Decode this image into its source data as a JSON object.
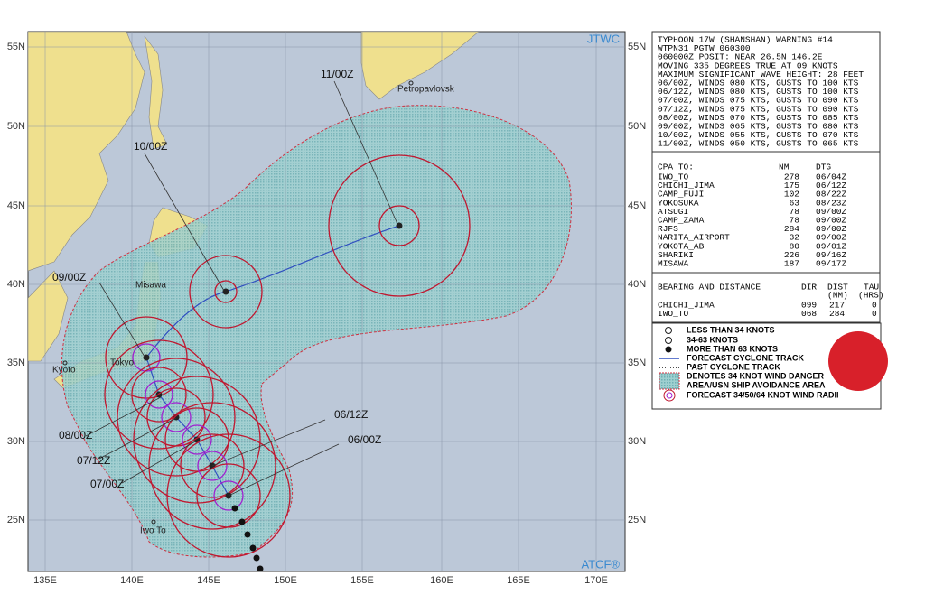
{
  "map": {
    "source": "JTWC",
    "trademark": "ATCF®",
    "lat_labels": [
      "55N",
      "50N",
      "45N",
      "40N",
      "35N",
      "30N",
      "25N"
    ],
    "lon_labels": [
      "135E",
      "140E",
      "145E",
      "150E",
      "155E",
      "160E",
      "165E",
      "170E"
    ],
    "places": [
      "Petropavlovsk",
      "Misawa",
      "Tokyo",
      "Kyoto",
      "Iwo To"
    ],
    "time_labels": [
      "11/00Z",
      "10/00Z",
      "09/00Z",
      "08/00Z",
      "07/12Z",
      "07/00Z",
      "06/12Z",
      "06/00Z"
    ]
  },
  "warning": {
    "lines": [
      "TYPHOON 17W (SHANSHAN) WARNING #14",
      "WTPN31 PGTW 060300",
      "060000Z POSIT: NEAR 26.5N 146.2E",
      "MOVING 335 DEGREES TRUE AT 09 KNOTS",
      "MAXIMUM SIGNIFICANT WAVE HEIGHT: 28 FEET",
      "06/00Z, WINDS 080 KTS, GUSTS TO 100 KTS",
      "06/12Z, WINDS 080 KTS, GUSTS TO 100 KTS",
      "07/00Z, WINDS 075 KTS, GUSTS TO 090 KTS",
      "07/12Z, WINDS 075 KTS, GUSTS TO 090 KTS",
      "08/00Z, WINDS 070 KTS, GUSTS TO 085 KTS",
      "09/00Z, WINDS 065 KTS, GUSTS TO 080 KTS",
      "10/00Z, WINDS 055 KTS, GUSTS TO 070 KTS",
      "11/00Z, WINDS 050 KTS, GUSTS TO 065 KTS"
    ]
  },
  "cpa": {
    "header": [
      "CPA TO:",
      "NM",
      "DTG"
    ],
    "rows": [
      [
        "IWO_TO",
        "278",
        "06/04Z"
      ],
      [
        "CHICHI_JIMA",
        "175",
        "06/12Z"
      ],
      [
        "CAMP_FUJI",
        "102",
        "08/22Z"
      ],
      [
        "YOKOSUKA",
        "63",
        "08/23Z"
      ],
      [
        "ATSUGI",
        "78",
        "09/00Z"
      ],
      [
        "CAMP_ZAMA",
        "78",
        "09/00Z"
      ],
      [
        "RJFS",
        "284",
        "09/00Z"
      ],
      [
        "NARITA_AIRPORT",
        "32",
        "09/00Z"
      ],
      [
        "YOKOTA_AB",
        "80",
        "09/01Z"
      ],
      [
        "SHARIKI",
        "226",
        "09/16Z"
      ],
      [
        "MISAWA",
        "187",
        "09/17Z"
      ]
    ]
  },
  "bearing": {
    "header": [
      "BEARING AND DISTANCE",
      "DIR",
      "DIST",
      "TAU"
    ],
    "subheader": [
      "(NM)",
      "(HRS)"
    ],
    "rows": [
      [
        "CHICHI_JIMA",
        "099",
        "217",
        "0"
      ],
      [
        "IWO_TO",
        "068",
        "284",
        "0"
      ]
    ]
  },
  "legend": {
    "items": [
      "LESS THAN 34 KNOTS",
      "34-63 KNOTS",
      "MORE THAN 63 KNOTS",
      "FORECAST CYCLONE TRACK",
      "PAST CYCLONE TRACK",
      "DENOTES 34 KNOT WIND DANGER",
      "AREA/USN SHIP AVOIDANCE AREA",
      "FORECAST 34/50/64 KNOT WIND RADII"
    ]
  }
}
